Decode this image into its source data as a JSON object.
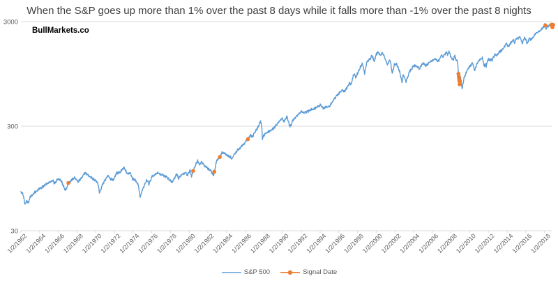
{
  "chart_data": {
    "type": "line",
    "title": "When the S&P goes up more than 1% over the past 8 days while it falls more than -1% over the past 8 nights",
    "watermark": "BullMarkets.co",
    "colors": {
      "sp500": "#5B9BD5",
      "signal": "#ED7D31",
      "grid": "#D9D9D9",
      "axis_text": "#595959",
      "title_text": "#3F3F3F"
    },
    "x_axis": {
      "tick_labels": [
        "1/2/1962",
        "1/2/1964",
        "1/2/1966",
        "1/2/1968",
        "1/2/1970",
        "1/2/1972",
        "1/2/1974",
        "1/2/1976",
        "1/2/1978",
        "1/2/1980",
        "1/2/1982",
        "1/2/1984",
        "1/2/1986",
        "1/2/1988",
        "1/2/1990",
        "1/2/1992",
        "1/2/1994",
        "1/2/1996",
        "1/2/1998",
        "1/2/2000",
        "1/2/2002",
        "1/2/2004",
        "1/2/2006",
        "1/2/2008",
        "1/2/2010",
        "1/2/2012",
        "1/2/2014",
        "1/2/2016",
        "1/2/2018"
      ],
      "tick_years": [
        1962,
        1964,
        1966,
        1968,
        1970,
        1972,
        1974,
        1976,
        1978,
        1980,
        1982,
        1984,
        1986,
        1988,
        1990,
        1992,
        1994,
        1996,
        1998,
        2000,
        2002,
        2004,
        2006,
        2008,
        2010,
        2012,
        2014,
        2016,
        2018
      ]
    },
    "y_axis": {
      "scale": "log",
      "ticks": [
        30,
        300,
        3000
      ],
      "tick_labels": [
        "30",
        "300",
        "3000"
      ]
    },
    "xlim": [
      1962,
      2019
    ],
    "ylim": [
      30,
      3000
    ],
    "legend_position": "bottom",
    "series": [
      {
        "name": "S&P 500",
        "color": "#5B9BD5",
        "style": "line",
        "points": [
          [
            1962.0,
            70
          ],
          [
            1962.17,
            69
          ],
          [
            1962.45,
            54
          ],
          [
            1962.6,
            58
          ],
          [
            1962.79,
            55
          ],
          [
            1963.0,
            63
          ],
          [
            1963.5,
            70
          ],
          [
            1964.0,
            76
          ],
          [
            1964.5,
            81
          ],
          [
            1965.0,
            87
          ],
          [
            1965.45,
            90
          ],
          [
            1965.55,
            84
          ],
          [
            1965.9,
            92
          ],
          [
            1966.12,
            94
          ],
          [
            1966.4,
            86
          ],
          [
            1966.6,
            78
          ],
          [
            1966.79,
            73
          ],
          [
            1967.08,
            86
          ],
          [
            1967.4,
            91
          ],
          [
            1967.75,
            97
          ],
          [
            1968.15,
            88
          ],
          [
            1968.9,
            108
          ],
          [
            1969.4,
            98
          ],
          [
            1969.9,
            92
          ],
          [
            1970.2,
            87
          ],
          [
            1970.42,
            69
          ],
          [
            1970.7,
            82
          ],
          [
            1971.0,
            92
          ],
          [
            1971.32,
            101
          ],
          [
            1971.6,
            94
          ],
          [
            1971.87,
            91
          ],
          [
            1972.2,
            106
          ],
          [
            1972.6,
            109
          ],
          [
            1973.03,
            120
          ],
          [
            1973.4,
            105
          ],
          [
            1973.7,
            108
          ],
          [
            1973.95,
            94
          ],
          [
            1974.2,
            92
          ],
          [
            1974.55,
            83
          ],
          [
            1974.77,
            62
          ],
          [
            1974.9,
            70
          ],
          [
            1975.05,
            76
          ],
          [
            1975.45,
            92
          ],
          [
            1975.7,
            84
          ],
          [
            1976.05,
            100
          ],
          [
            1976.7,
            107
          ],
          [
            1977.0,
            103
          ],
          [
            1977.5,
            99
          ],
          [
            1978.18,
            87
          ],
          [
            1978.68,
            105
          ],
          [
            1978.85,
            94
          ],
          [
            1979.05,
            100
          ],
          [
            1979.6,
            108
          ],
          [
            1979.82,
            101
          ],
          [
            1980.1,
            115
          ],
          [
            1980.25,
            100
          ],
          [
            1980.42,
            112
          ],
          [
            1980.88,
            140
          ],
          [
            1981.1,
            129
          ],
          [
            1981.32,
            136
          ],
          [
            1981.7,
            123
          ],
          [
            1982.1,
            116
          ],
          [
            1982.3,
            112
          ],
          [
            1982.62,
            102
          ],
          [
            1982.72,
            113
          ],
          [
            1982.95,
            141
          ],
          [
            1983.15,
            148
          ],
          [
            1983.28,
            152
          ],
          [
            1983.5,
            168
          ],
          [
            1983.8,
            164
          ],
          [
            1984.15,
            156
          ],
          [
            1984.55,
            148
          ],
          [
            1985.0,
            170
          ],
          [
            1985.5,
            188
          ],
          [
            1986.0,
            212
          ],
          [
            1986.28,
            225
          ],
          [
            1986.55,
            247
          ],
          [
            1986.75,
            236
          ],
          [
            1987.05,
            264
          ],
          [
            1987.35,
            292
          ],
          [
            1987.64,
            336
          ],
          [
            1987.78,
            283
          ],
          [
            1987.82,
            225
          ],
          [
            1987.95,
            245
          ],
          [
            1988.35,
            260
          ],
          [
            1988.7,
            272
          ],
          [
            1989.05,
            288
          ],
          [
            1989.55,
            325
          ],
          [
            1989.78,
            350
          ],
          [
            1990.0,
            353
          ],
          [
            1990.1,
            330
          ],
          [
            1990.47,
            368
          ],
          [
            1990.78,
            295
          ],
          [
            1991.1,
            343
          ],
          [
            1991.55,
            382
          ],
          [
            1992.0,
            417
          ],
          [
            1992.28,
            403
          ],
          [
            1992.7,
            418
          ],
          [
            1993.05,
            435
          ],
          [
            1993.55,
            450
          ],
          [
            1994.1,
            480
          ],
          [
            1994.3,
            445
          ],
          [
            1994.7,
            462
          ],
          [
            1994.95,
            455
          ],
          [
            1995.5,
            545
          ],
          [
            1996.0,
            617
          ],
          [
            1996.4,
            672
          ],
          [
            1996.55,
            635
          ],
          [
            1997.05,
            740
          ],
          [
            1997.18,
            790
          ],
          [
            1997.3,
            745
          ],
          [
            1997.6,
            950
          ],
          [
            1997.82,
            880
          ],
          [
            1998.05,
            980
          ],
          [
            1998.3,
            1100
          ],
          [
            1998.54,
            1185
          ],
          [
            1998.65,
            1060
          ],
          [
            1998.76,
            960
          ],
          [
            1999.0,
            1230
          ],
          [
            1999.35,
            1330
          ],
          [
            1999.56,
            1420
          ],
          [
            1999.78,
            1250
          ],
          [
            2000.0,
            1460
          ],
          [
            2000.22,
            1527
          ],
          [
            2000.42,
            1425
          ],
          [
            2000.67,
            1510
          ],
          [
            2000.95,
            1330
          ],
          [
            2001.2,
            1165
          ],
          [
            2001.42,
            1290
          ],
          [
            2001.55,
            1210
          ],
          [
            2001.72,
            965
          ],
          [
            2001.95,
            1160
          ],
          [
            2002.22,
            1165
          ],
          [
            2002.52,
            990
          ],
          [
            2002.76,
            777
          ],
          [
            2002.9,
            935
          ],
          [
            2003.0,
            890
          ],
          [
            2003.2,
            800
          ],
          [
            2003.55,
            995
          ],
          [
            2004.0,
            1130
          ],
          [
            2004.25,
            1140
          ],
          [
            2004.62,
            1065
          ],
          [
            2005.0,
            1210
          ],
          [
            2005.3,
            1140
          ],
          [
            2005.95,
            1270
          ],
          [
            2006.38,
            1325
          ],
          [
            2006.55,
            1225
          ],
          [
            2007.0,
            1425
          ],
          [
            2007.18,
            1380
          ],
          [
            2007.55,
            1553
          ],
          [
            2007.64,
            1410
          ],
          [
            2007.78,
            1565
          ],
          [
            2008.0,
            1380
          ],
          [
            2008.22,
            1270
          ],
          [
            2008.4,
            1425
          ],
          [
            2008.56,
            1260
          ],
          [
            2008.7,
            1255
          ],
          [
            2008.76,
            1100
          ],
          [
            2008.79,
            900
          ],
          [
            2008.83,
            968
          ],
          [
            2008.86,
            880
          ],
          [
            2008.89,
            800
          ],
          [
            2008.92,
            752
          ],
          [
            2008.96,
            880
          ],
          [
            2009.0,
            900
          ],
          [
            2009.1,
            805
          ],
          [
            2009.19,
            677
          ],
          [
            2009.4,
            880
          ],
          [
            2009.55,
            925
          ],
          [
            2009.72,
            1030
          ],
          [
            2010.0,
            1115
          ],
          [
            2010.3,
            1217
          ],
          [
            2010.52,
            1030
          ],
          [
            2010.72,
            1145
          ],
          [
            2011.0,
            1282
          ],
          [
            2011.35,
            1363
          ],
          [
            2011.58,
            1120
          ],
          [
            2011.68,
            1200
          ],
          [
            2011.76,
            1099
          ],
          [
            2011.88,
            1255
          ],
          [
            2012.05,
            1315
          ],
          [
            2012.4,
            1280
          ],
          [
            2012.72,
            1460
          ],
          [
            2012.88,
            1410
          ],
          [
            2013.05,
            1485
          ],
          [
            2013.5,
            1630
          ],
          [
            2013.95,
            1840
          ],
          [
            2014.1,
            1742
          ],
          [
            2014.7,
            2010
          ],
          [
            2014.8,
            1862
          ],
          [
            2015.0,
            2060
          ],
          [
            2015.4,
            2130
          ],
          [
            2015.62,
            1870
          ],
          [
            2015.85,
            2100
          ],
          [
            2016.05,
            1990
          ],
          [
            2016.12,
            1830
          ],
          [
            2016.45,
            2100
          ],
          [
            2016.5,
            2002
          ],
          [
            2016.85,
            2140
          ],
          [
            2017.0,
            2275
          ],
          [
            2017.5,
            2440
          ],
          [
            2017.95,
            2680
          ],
          [
            2018.07,
            2872
          ],
          [
            2018.12,
            2581
          ],
          [
            2018.25,
            2640
          ],
          [
            2018.4,
            2720
          ],
          [
            2018.55,
            2800
          ],
          [
            2018.68,
            2901
          ],
          [
            2018.75,
            2768
          ],
          [
            2018.8,
            2813
          ],
          [
            2018.85,
            2680
          ],
          [
            2018.88,
            2632
          ],
          [
            2018.93,
            2790
          ]
        ]
      },
      {
        "name": "Signal Date",
        "color": "#ED7D31",
        "style": "line+marker",
        "points": [
          [
            1967.08,
            86
          ],
          [
            1980.42,
            112
          ],
          [
            1982.68,
            110
          ],
          [
            1983.28,
            152
          ],
          [
            1986.28,
            225
          ],
          [
            2008.8,
            950
          ],
          [
            2008.83,
            900
          ],
          [
            2008.86,
            860
          ],
          [
            2008.89,
            810
          ],
          [
            2008.92,
            755
          ],
          [
            2018.09,
            2762
          ],
          [
            2018.77,
            2740
          ],
          [
            2018.8,
            2813
          ],
          [
            2018.83,
            2700
          ],
          [
            2018.86,
            2650
          ],
          [
            2018.93,
            2790
          ]
        ]
      }
    ]
  }
}
